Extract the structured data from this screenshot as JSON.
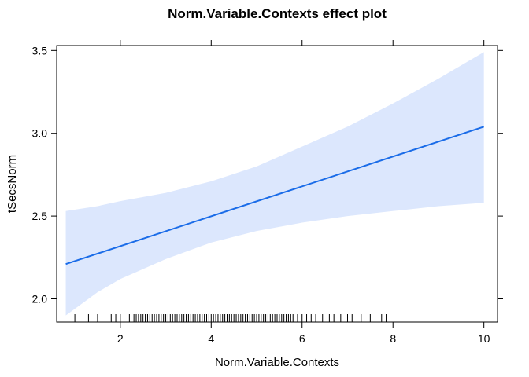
{
  "chart_data": {
    "type": "line",
    "title": "Norm.Variable.Contexts effect plot",
    "xlabel": "Norm.Variable.Contexts",
    "ylabel": "tSecsNorm",
    "xlim": [
      0.6,
      10.3
    ],
    "ylim": [
      1.86,
      3.53
    ],
    "x_ticks": [
      2,
      4,
      6,
      8,
      10
    ],
    "y_ticks": [
      2.0,
      2.5,
      3.0,
      3.5
    ],
    "x_tick_labels": [
      "2",
      "4",
      "6",
      "8",
      "10"
    ],
    "y_tick_labels": [
      "2.0",
      "2.5",
      "3.0",
      "3.5"
    ],
    "grid": false,
    "colors": {
      "line": "#1a6ce8",
      "band": "#dce7fd",
      "rug": "#000000"
    },
    "series": [
      {
        "x": [
          0.8,
          10.0
        ],
        "y": [
          2.21,
          3.04
        ]
      }
    ],
    "confidence_band": {
      "x": [
        0.8,
        1.5,
        2.0,
        3.0,
        4.0,
        5.0,
        6.0,
        7.0,
        8.0,
        9.0,
        10.0
      ],
      "lower": [
        1.9,
        2.04,
        2.12,
        2.24,
        2.34,
        2.41,
        2.46,
        2.5,
        2.53,
        2.56,
        2.58
      ],
      "upper": [
        2.53,
        2.56,
        2.59,
        2.64,
        2.71,
        2.8,
        2.92,
        3.04,
        3.18,
        3.33,
        3.49
      ]
    },
    "rug_x": [
      1.0,
      1.3,
      1.5,
      1.8,
      1.9,
      2.0,
      2.2,
      2.3,
      2.35,
      2.4,
      2.45,
      2.5,
      2.55,
      2.6,
      2.65,
      2.7,
      2.75,
      2.8,
      2.85,
      2.9,
      2.95,
      3.0,
      3.05,
      3.1,
      3.15,
      3.2,
      3.25,
      3.3,
      3.35,
      3.4,
      3.45,
      3.5,
      3.55,
      3.6,
      3.65,
      3.7,
      3.75,
      3.8,
      3.85,
      3.9,
      3.95,
      4.0,
      4.05,
      4.1,
      4.15,
      4.2,
      4.25,
      4.3,
      4.35,
      4.4,
      4.45,
      4.5,
      4.55,
      4.6,
      4.65,
      4.7,
      4.75,
      4.8,
      4.85,
      4.9,
      4.95,
      5.0,
      5.05,
      5.1,
      5.15,
      5.2,
      5.25,
      5.3,
      5.35,
      5.4,
      5.45,
      5.5,
      5.55,
      5.6,
      5.65,
      5.7,
      5.75,
      5.8,
      5.9,
      6.0,
      6.1,
      6.2,
      6.3,
      6.45,
      6.6,
      6.7,
      6.85,
      7.0,
      7.1,
      7.3,
      7.5,
      7.75,
      7.85
    ]
  }
}
